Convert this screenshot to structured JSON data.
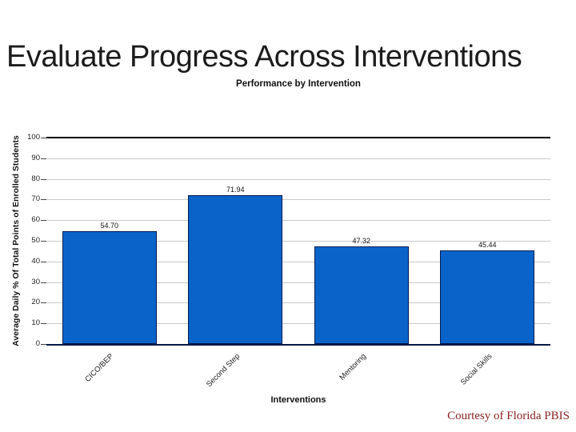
{
  "slide": {
    "title": "Evaluate Progress Across Interventions",
    "credit": "Courtesy of Florida PBIS"
  },
  "colors": {
    "bar_fill": "#0A63C9",
    "bar_border": "#001A4D",
    "gridline_light": "#c9c9c9",
    "gridline_top": "#000000",
    "axis_baseline": "#001747",
    "credit_text": "#8B2323",
    "title_text": "#1c1c1c"
  },
  "chart_data": {
    "type": "bar",
    "title": "Performance by Intervention",
    "categories": [
      "CICO/BEP",
      "Second Step",
      "Mentoring",
      "Social Skills"
    ],
    "values": [
      54.7,
      71.94,
      47.32,
      45.44
    ],
    "value_labels": [
      "54.70",
      "71.94",
      "47.32",
      "45.44"
    ],
    "xlabel": "Interventions",
    "ylabel": "Average Daily % Of Total Points of Enrolled Students",
    "ylim": [
      0,
      100
    ],
    "yticks": [
      0,
      10,
      20,
      30,
      40,
      50,
      60,
      70,
      80,
      90,
      100
    ],
    "grid": true,
    "legend": false
  }
}
